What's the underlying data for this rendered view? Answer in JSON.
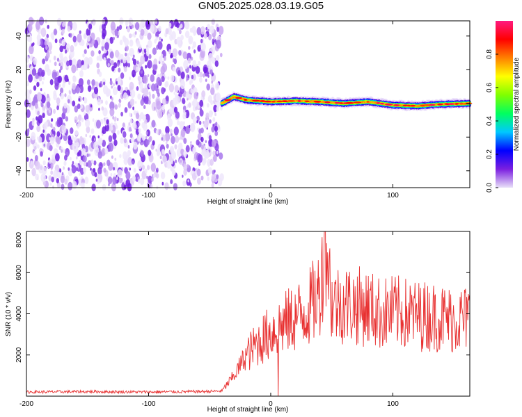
{
  "title": "GN05.2025.028.03.19.G05",
  "chart_data": [
    {
      "type": "heatmap",
      "title": "",
      "xlabel": "Height of straight line (km)",
      "ylabel": "Frequency (Hz)",
      "xlim": [
        -200,
        163
      ],
      "ylim": [
        -50,
        49
      ],
      "xticks": [
        -200,
        -100,
        0,
        100
      ],
      "yticks": [
        -40,
        -20,
        0,
        20,
        40
      ],
      "colorbar": {
        "label": "Normalized spectral amplitude",
        "range": [
          0,
          1
        ],
        "ticks": [
          0.0,
          0.2,
          0.4,
          0.6,
          0.8
        ],
        "colormap": [
          "#e8e0f8",
          "#7b1fe0",
          "#0000ff",
          "#00c8ff",
          "#00ff60",
          "#80ff00",
          "#ffff00",
          "#ff8000",
          "#ff0000",
          "#ff1a80"
        ]
      },
      "noise_region": {
        "x_range": [
          -200,
          -40
        ],
        "peak_amplitude": 0.15
      },
      "signal_ridge": [
        {
          "x": -40,
          "freq": 0
        },
        {
          "x": -35,
          "freq": 2
        },
        {
          "x": -30,
          "freq": 4
        },
        {
          "x": -20,
          "freq": 2
        },
        {
          "x": 0,
          "freq": 1
        },
        {
          "x": 20,
          "freq": 1.5
        },
        {
          "x": 40,
          "freq": 1
        },
        {
          "x": 60,
          "freq": 0
        },
        {
          "x": 80,
          "freq": 1
        },
        {
          "x": 100,
          "freq": -1
        },
        {
          "x": 120,
          "freq": -1.5
        },
        {
          "x": 140,
          "freq": -0.5
        },
        {
          "x": 163,
          "freq": 0
        }
      ],
      "grid": false
    },
    {
      "type": "line",
      "title": "",
      "xlabel": "Height of straight line (km)",
      "ylabel": "SNR (10 * v/v)",
      "xlim": [
        -200,
        163
      ],
      "ylim": [
        0,
        8000
      ],
      "xticks": [
        -200,
        -100,
        0,
        100
      ],
      "yticks": [
        2000,
        4000,
        6000,
        8000
      ],
      "series": [
        {
          "color": "#e83030",
          "x": [
            -200,
            -150,
            -100,
            -50,
            -40,
            -30,
            -20,
            -10,
            0,
            10,
            20,
            30,
            40,
            45,
            50,
            60,
            70,
            80,
            90,
            100,
            110,
            120,
            130,
            140,
            150,
            163
          ],
          "y": [
            200,
            220,
            200,
            230,
            250,
            1000,
            2000,
            2600,
            3100,
            3500,
            3800,
            4200,
            5000,
            8000,
            4500,
            4500,
            4400,
            4300,
            4000,
            4100,
            4000,
            3900,
            3900,
            3800,
            3700,
            3800
          ]
        }
      ],
      "grid": false
    }
  ]
}
